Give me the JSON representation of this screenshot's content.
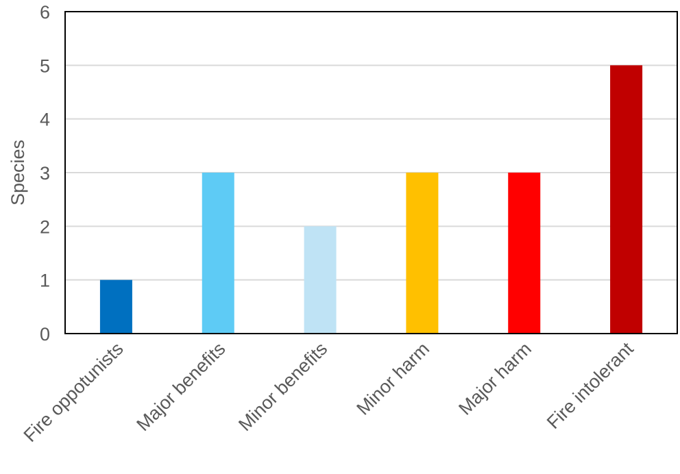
{
  "chart_data": {
    "type": "bar",
    "title": "",
    "xlabel": "",
    "ylabel": "Species",
    "categories": [
      "Fire oppotunists",
      "Major benefits",
      "Minor benefits",
      "Minor harm",
      "Major harm",
      "Fire intolerant"
    ],
    "values": [
      1,
      3,
      2,
      3,
      3,
      5
    ],
    "colors": [
      "#0070c0",
      "#5ecbf5",
      "#bfe3f5",
      "#ffc000",
      "#ff0000",
      "#c00000"
    ],
    "ylim": [
      0,
      6
    ],
    "yticks": [
      "0",
      "1",
      "2",
      "3",
      "4",
      "5",
      "6"
    ],
    "grid": true,
    "legend": "none"
  }
}
